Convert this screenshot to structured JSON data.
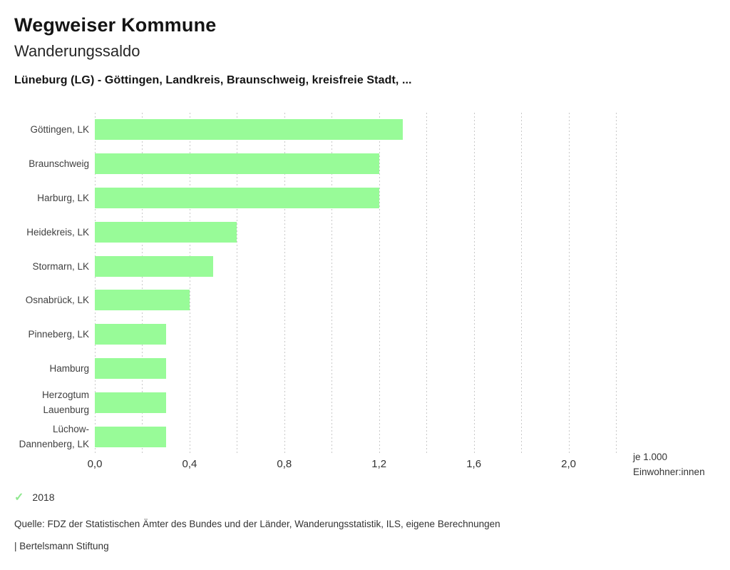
{
  "header": {
    "app_title": "Wegweiser Kommune",
    "chart_title": "Wanderungssaldo",
    "chart_subtitle": "Lüneburg (LG) - Göttingen, Landkreis, Braunschweig, kreisfreie Stadt, ..."
  },
  "chart_data": {
    "type": "bar",
    "orientation": "horizontal",
    "title": "Wanderungssaldo",
    "categories": [
      "Göttingen, LK",
      "Braunschweig",
      "Harburg, LK",
      "Heidekreis, LK",
      "Stormarn, LK",
      "Osnabrück, LK",
      "Pinneberg, LK",
      "Hamburg",
      "Herzogtum Lauenburg",
      "Lüchow-Dannenberg, LK"
    ],
    "series": [
      {
        "name": "2018",
        "values": [
          1.3,
          1.2,
          1.2,
          0.6,
          0.5,
          0.4,
          0.3,
          0.3,
          0.3,
          0.3
        ]
      }
    ],
    "xlim": [
      0,
      2.2
    ],
    "grid": true,
    "grid_step": 0.2,
    "x_ticks": [
      {
        "value": 0.0,
        "label": "0,0"
      },
      {
        "value": 0.4,
        "label": "0,4"
      },
      {
        "value": 0.8,
        "label": "0,8"
      },
      {
        "value": 1.2,
        "label": "1,2"
      },
      {
        "value": 1.6,
        "label": "1,6"
      },
      {
        "value": 2.0,
        "label": "2,0"
      }
    ],
    "unit_label": {
      "line1": "je 1.000",
      "line2": "Einwohner:innen"
    },
    "bar_color": "#98fb98",
    "grid_color": "#c8c8c8",
    "legend_position": "bottom-left"
  },
  "legend": {
    "check_glyph": "✓",
    "check_color": "#90e890",
    "year": "2018"
  },
  "footer": {
    "source": "Quelle: FDZ der Statistischen Ämter des Bundes und der Länder, Wanderungsstatistik, ILS, eigene Berechnungen",
    "branding": "| Bertelsmann Stiftung"
  }
}
